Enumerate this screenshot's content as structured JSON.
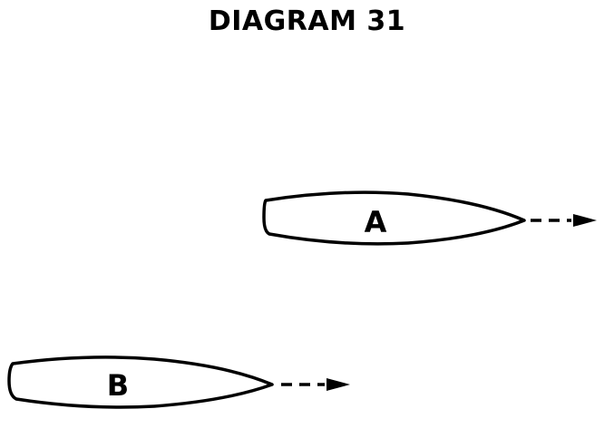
{
  "title": "DIAGRAM 31",
  "boats": [
    {
      "id": "boat-a",
      "label": "A"
    },
    {
      "id": "boat-b",
      "label": "B"
    }
  ],
  "colors": {
    "ink": "#000000",
    "background": "#ffffff"
  }
}
